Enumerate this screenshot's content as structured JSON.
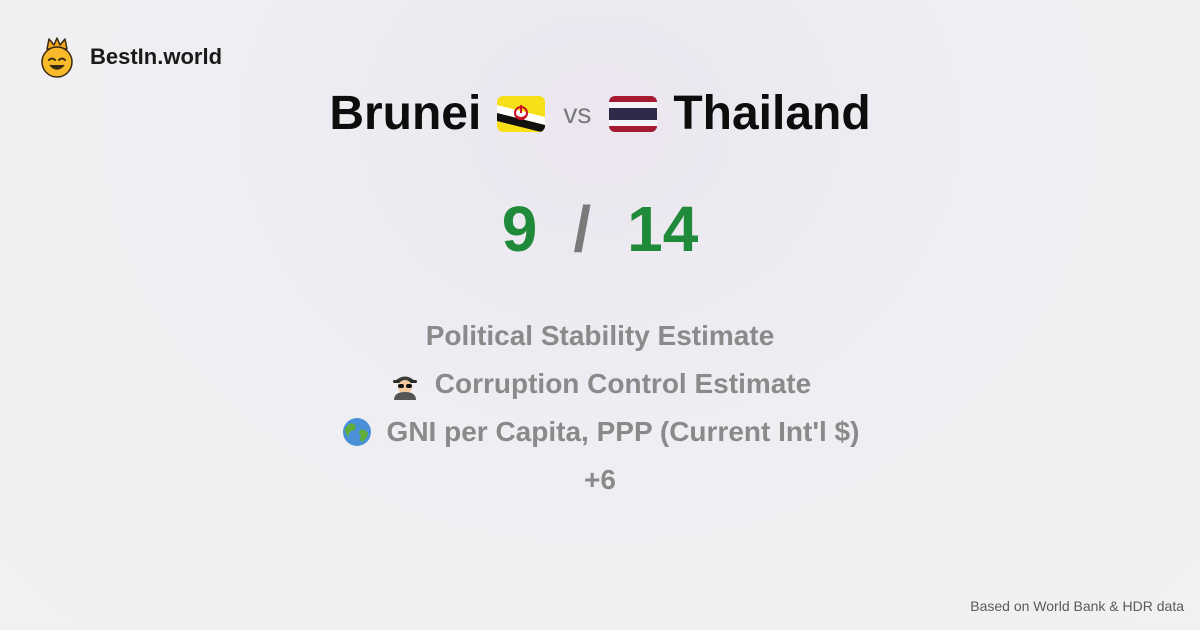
{
  "brand": {
    "name": "BestIn.world",
    "logo_icon": "crown-smiley-icon"
  },
  "comparison": {
    "left_country": "Brunei",
    "left_flag": "brunei-flag-icon",
    "vs_label": "vs",
    "right_country": "Thailand",
    "right_flag": "thailand-flag-icon"
  },
  "score": {
    "left": "9",
    "separator": "/",
    "right": "14",
    "color": "#1f8a3a"
  },
  "metrics": [
    {
      "label": "Political Stability Estimate",
      "icon": ""
    },
    {
      "label": "Corruption Control Estimate",
      "icon": "spy-icon"
    },
    {
      "label": "GNI per Capita, PPP (Current Int'l $)",
      "icon": "globe-icon"
    }
  ],
  "more_label": "+6",
  "footer": {
    "source": "Based on World Bank & HDR data"
  }
}
